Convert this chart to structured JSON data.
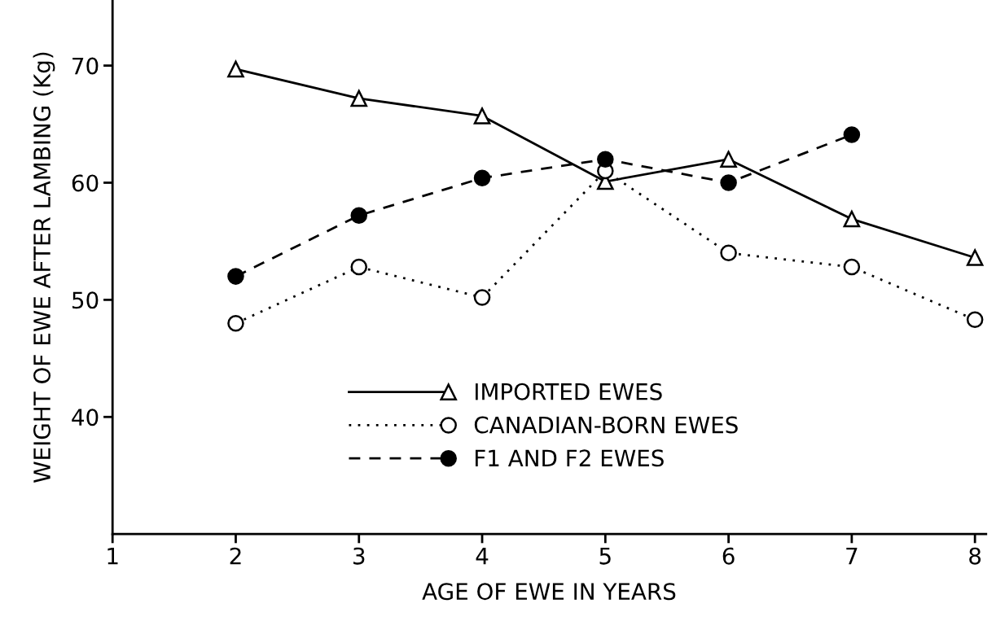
{
  "chart_data": {
    "type": "line",
    "xlabel": "AGE OF EWE IN YEARS",
    "ylabel": "WEIGHT OF EWE AFTER LAMBING (Kg)",
    "x": [
      2,
      3,
      4,
      5,
      6,
      7,
      8
    ],
    "series": [
      {
        "name": "IMPORTED EWES",
        "color": "#000000",
        "marker": "triangle",
        "line_style": "solid",
        "values": [
          69.7,
          67.2,
          65.7,
          60.1,
          62.0,
          56.9,
          53.6
        ]
      },
      {
        "name": "CANADIAN-BORN EWES",
        "color": "#000000",
        "marker": "circle",
        "line_style": "dotted",
        "values": [
          48.0,
          52.8,
          50.2,
          61.0,
          54.0,
          52.8,
          48.3
        ]
      },
      {
        "name": "F1 AND F2 EWES",
        "color": "#000000",
        "marker": "circle",
        "line_style": "dashed",
        "values": [
          52.0,
          57.2,
          60.4,
          62.0,
          60.0,
          64.1,
          null
        ]
      }
    ],
    "xlim": [
      1,
      8.09
    ],
    "ylim": [
      30,
      75.6
    ],
    "xticks": [
      1,
      2,
      3,
      4,
      5,
      6,
      7,
      8
    ],
    "yticks": [
      40,
      50,
      60,
      70
    ],
    "grid": false,
    "legend": "bottom"
  }
}
